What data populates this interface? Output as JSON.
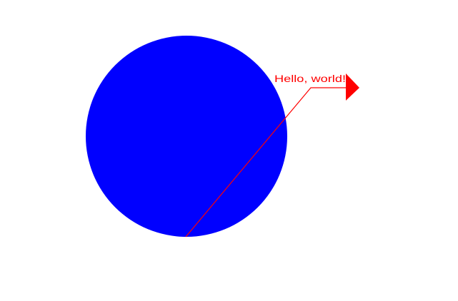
{
  "diagram": {
    "background_color": "#ffffff",
    "circle": {
      "fill_color": "#0000ff"
    },
    "annotation": {
      "text": "Hello, world!",
      "color": "#ff0000",
      "marker": "right-triangle-arrow-icon"
    }
  }
}
